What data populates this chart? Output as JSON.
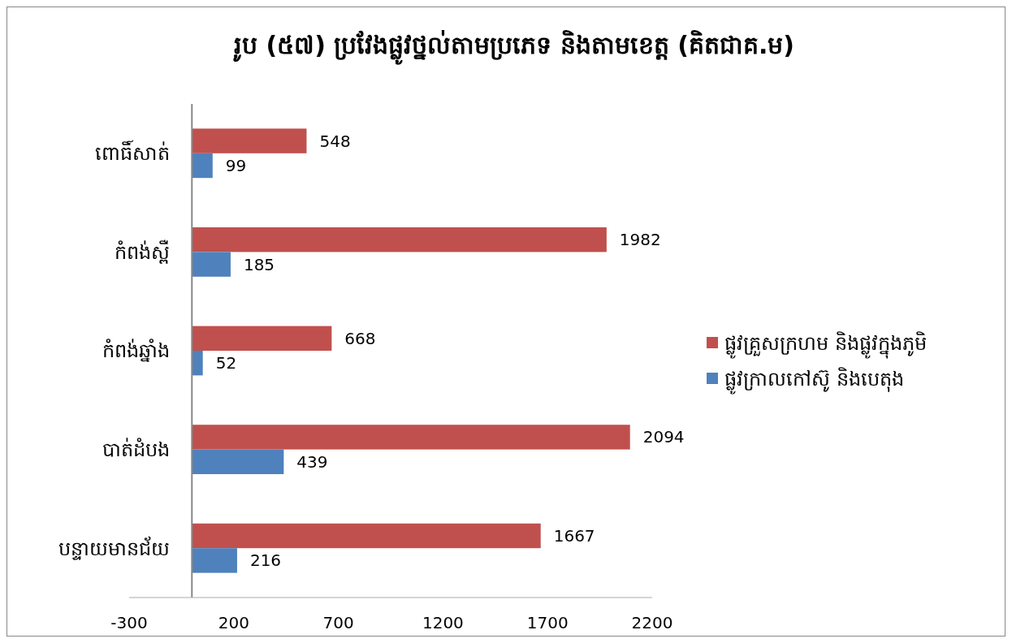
{
  "chart_data": {
    "type": "bar",
    "orientation": "horizontal",
    "title": "រូប (៥៧) ប្រវែងផ្លូវថ្នល់តាមប្រភេទ និងតាមខេត្ត (គិតជាគ.ម)",
    "categories": [
      "ពោធិ៍សាត់",
      "កំពង់ស្ពឺ",
      "កំពង់ឆ្នាំង",
      "បាត់ដំបង",
      "បន្ទាយមានជ័យ"
    ],
    "series": [
      {
        "name": "ផ្លូវគ្រួសក្រហម និងផ្លូវក្នុងភូមិ",
        "color": "#c0504d",
        "values": [
          548,
          1982,
          668,
          2094,
          1667
        ]
      },
      {
        "name": "ផ្លូវក្រាលកៅស៊ូ និងបេតុង",
        "color": "#4f81bd",
        "values": [
          99,
          185,
          52,
          439,
          216
        ]
      }
    ],
    "xlim": [
      -300,
      2200
    ],
    "xticks": [
      -300,
      200,
      700,
      1200,
      1700,
      2200
    ],
    "data_labels": true,
    "legend": "right",
    "grid": false
  }
}
